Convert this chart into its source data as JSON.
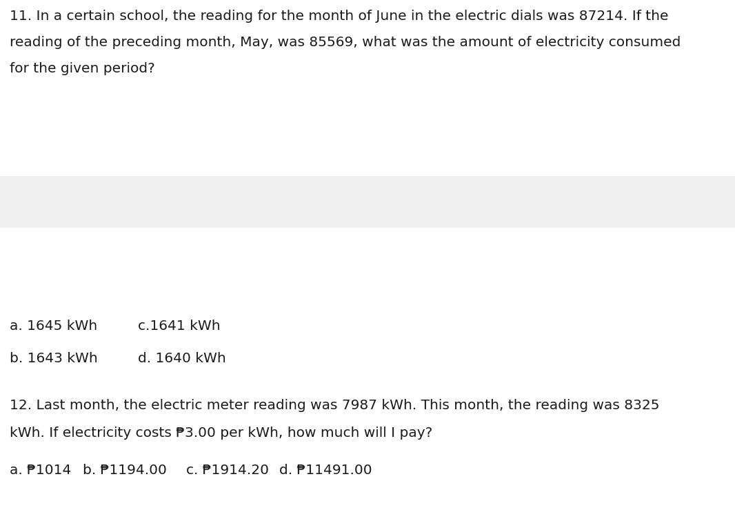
{
  "bg_color": "#ffffff",
  "gray_band_color": "#f0f0f0",
  "text_color": "#1a1a1a",
  "font_size": 14.5,
  "q11_line1": "11. In a certain school, the reading for the month of June in the electric dials was 87214. If the",
  "q11_line2": "reading of the preceding month, May, was 85569, what was the amount of electricity consumed",
  "q11_line3": "for the given period?",
  "q11_a": "a. 1645 kWh",
  "q11_c": "c.1641 kWh",
  "q11_b": "b. 1643 kWh",
  "q11_d": "d. 1640 kWh",
  "q12_line1": "12. Last month, the electric meter reading was 7987 kWh. This month, the reading was 8325",
  "q12_line2": "kWh. If electricity costs ₱3.00 per kWh, how much will I pay?",
  "q12_a": "a. ₱1014",
  "q12_b": "b. ₱1194.00",
  "q12_c": "c. ₱1914.20",
  "q12_d": "d. ₱11491.00",
  "fig_width": 10.66,
  "fig_height": 7.52,
  "dpi": 100
}
